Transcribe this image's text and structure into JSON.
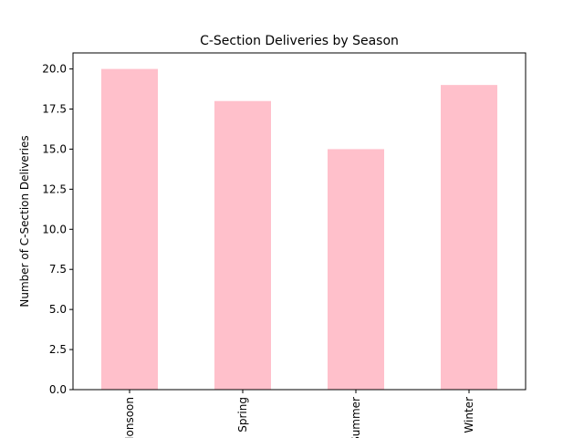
{
  "chart_data": {
    "type": "bar",
    "title": "C-Section Deliveries by Season",
    "xlabel": "",
    "ylabel": "Number of C-Section Deliveries",
    "categories": [
      "Monsoon",
      "Spring",
      "Summer",
      "Winter"
    ],
    "values": [
      20,
      18,
      15,
      19
    ],
    "ylim": [
      0,
      21
    ],
    "yticks": [
      0.0,
      2.5,
      5.0,
      7.5,
      10.0,
      12.5,
      15.0,
      17.5,
      20.0
    ],
    "ytick_labels": [
      "0.0",
      "2.5",
      "5.0",
      "7.5",
      "10.0",
      "12.5",
      "15.0",
      "17.5",
      "20.0"
    ],
    "bar_color": "#ffc0cb",
    "grid": false,
    "legend": "none"
  }
}
